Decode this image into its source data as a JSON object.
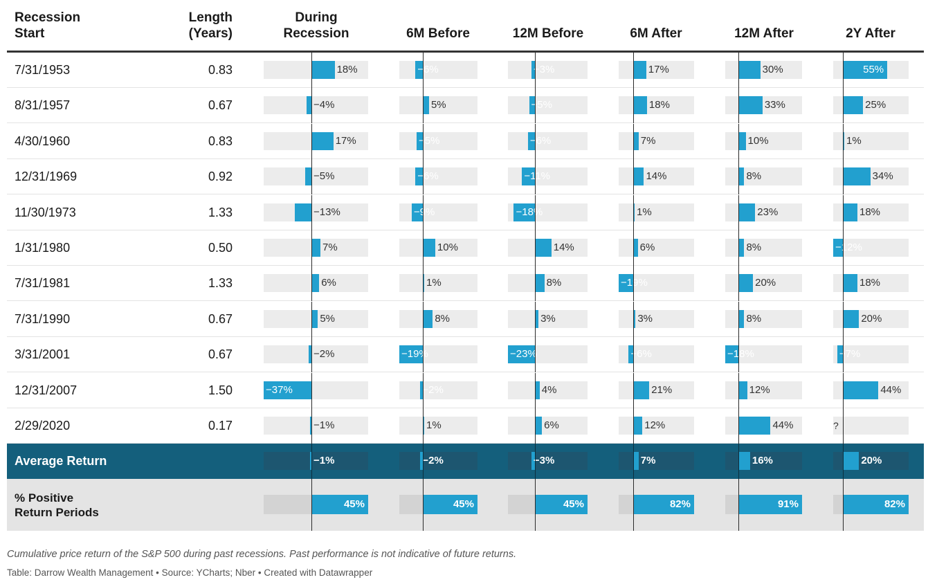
{
  "headers": {
    "start": [
      "Recession",
      "Start"
    ],
    "length": [
      "Length",
      "(Years)"
    ],
    "columns": [
      [
        "During",
        "Recession"
      ],
      [
        "6M Before"
      ],
      [
        "12M Before"
      ],
      [
        "6M After"
      ],
      [
        "12M After"
      ],
      [
        "2Y After"
      ]
    ]
  },
  "chart_data": {
    "type": "table",
    "columns": [
      "Recession Start",
      "Length (Years)",
      "During Recession",
      "6M Before",
      "12M Before",
      "6M After",
      "12M After",
      "2Y After"
    ],
    "rows": [
      {
        "start": "7/31/1953",
        "length": "0.83",
        "values": [
          18,
          -6,
          -3,
          17,
          30,
          55
        ],
        "labels": [
          "18%",
          "−6%",
          "−3%",
          "17%",
          "30%",
          "55%"
        ]
      },
      {
        "start": "8/31/1957",
        "length": "0.67",
        "values": [
          -4,
          5,
          -5,
          18,
          33,
          25
        ],
        "labels": [
          "−4%",
          "5%",
          "−5%",
          "18%",
          "33%",
          "25%"
        ]
      },
      {
        "start": "4/30/1960",
        "length": "0.83",
        "values": [
          17,
          -5,
          -6,
          7,
          10,
          1
        ],
        "labels": [
          "17%",
          "−5%",
          "−6%",
          "7%",
          "10%",
          "1%"
        ]
      },
      {
        "start": "12/31/1969",
        "length": "0.92",
        "values": [
          -5,
          -6,
          -11,
          14,
          8,
          34
        ],
        "labels": [
          "−5%",
          "−6%",
          "−11%",
          "14%",
          "8%",
          "34%"
        ]
      },
      {
        "start": "11/30/1973",
        "length": "1.33",
        "values": [
          -13,
          -9,
          -18,
          1,
          23,
          18
        ],
        "labels": [
          "−13%",
          "−9%",
          "−18%",
          "1%",
          "23%",
          "18%"
        ]
      },
      {
        "start": "1/31/1980",
        "length": "0.50",
        "values": [
          7,
          10,
          14,
          6,
          8,
          -12
        ],
        "labels": [
          "7%",
          "10%",
          "14%",
          "6%",
          "8%",
          "−12%"
        ]
      },
      {
        "start": "7/31/1981",
        "length": "1.33",
        "values": [
          6,
          1,
          8,
          -19,
          20,
          18
        ],
        "labels": [
          "6%",
          "1%",
          "8%",
          "−19%",
          "20%",
          "18%"
        ]
      },
      {
        "start": "7/31/1990",
        "length": "0.67",
        "values": [
          5,
          8,
          3,
          3,
          8,
          20
        ],
        "labels": [
          "5%",
          "8%",
          "3%",
          "3%",
          "8%",
          "20%"
        ]
      },
      {
        "start": "3/31/2001",
        "length": "0.67",
        "values": [
          -2,
          -19,
          -23,
          -6,
          -18,
          -7
        ],
        "labels": [
          "−2%",
          "−19%",
          "−23%",
          "−6%",
          "−18%",
          "−7%"
        ]
      },
      {
        "start": "12/31/2007",
        "length": "1.50",
        "values": [
          -37,
          -2,
          4,
          21,
          12,
          44
        ],
        "labels": [
          "−37%",
          "−2%",
          "4%",
          "21%",
          "12%",
          "44%"
        ]
      },
      {
        "start": "2/29/2020",
        "length": "0.17",
        "values": [
          -1,
          1,
          6,
          12,
          44,
          null
        ],
        "labels": [
          "−1%",
          "1%",
          "6%",
          "12%",
          "44%",
          "?"
        ]
      }
    ],
    "average": {
      "label": "Average Return",
      "values": [
        -1,
        -2,
        -3,
        7,
        16,
        20
      ],
      "labels": [
        "−1%",
        "−2%",
        "−3%",
        "7%",
        "16%",
        "20%"
      ]
    },
    "positive": {
      "label": [
        "% Positive",
        "Return Periods"
      ],
      "values": [
        45,
        45,
        45,
        82,
        91,
        82
      ],
      "labels": [
        "45%",
        "45%",
        "45%",
        "82%",
        "91%",
        "82%"
      ]
    }
  },
  "colors": {
    "bar": "#22a0cf",
    "average_row": "#145f7c",
    "positive_row": "#e4e4e4"
  },
  "footer": {
    "note": "Cumulative price return of the S&P 500 during past recessions. Past performance is not indicative of future returns.",
    "credit": "Table: Darrow Wealth Management • Source: YCharts; Nber • Created with Datawrapper"
  }
}
